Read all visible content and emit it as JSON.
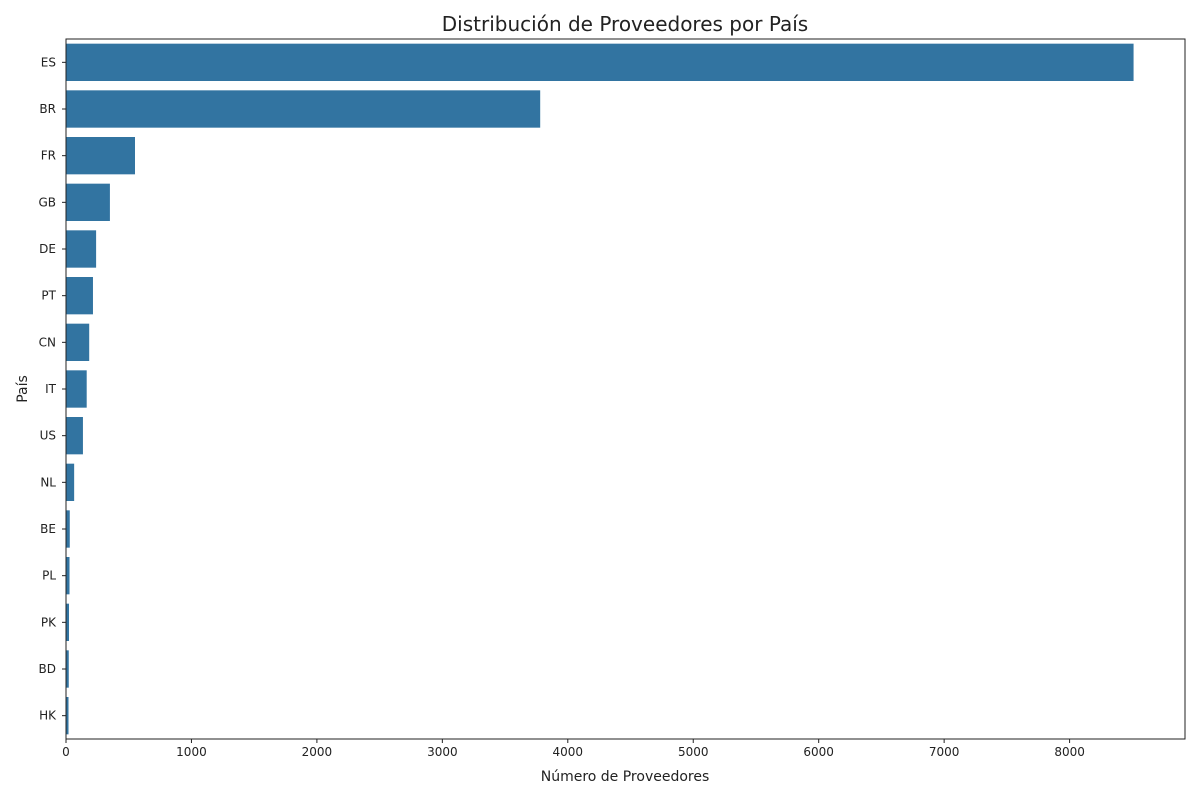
{
  "chart_data": {
    "type": "bar",
    "orientation": "horizontal",
    "title": "Distribución de Proveedores por País",
    "xlabel": "Número de Proveedores",
    "ylabel": "País",
    "categories": [
      "ES",
      "BR",
      "FR",
      "GB",
      "DE",
      "PT",
      "CN",
      "IT",
      "US",
      "NL",
      "BE",
      "PL",
      "PK",
      "BD",
      "HK"
    ],
    "values": [
      8510,
      3780,
      550,
      350,
      240,
      215,
      185,
      165,
      135,
      65,
      30,
      28,
      24,
      22,
      20
    ],
    "xlim": [
      0,
      8920
    ],
    "xticks": [
      0,
      1000,
      2000,
      3000,
      4000,
      5000,
      6000,
      7000,
      8000
    ],
    "grid": false,
    "bar_color": "#3274a1"
  }
}
